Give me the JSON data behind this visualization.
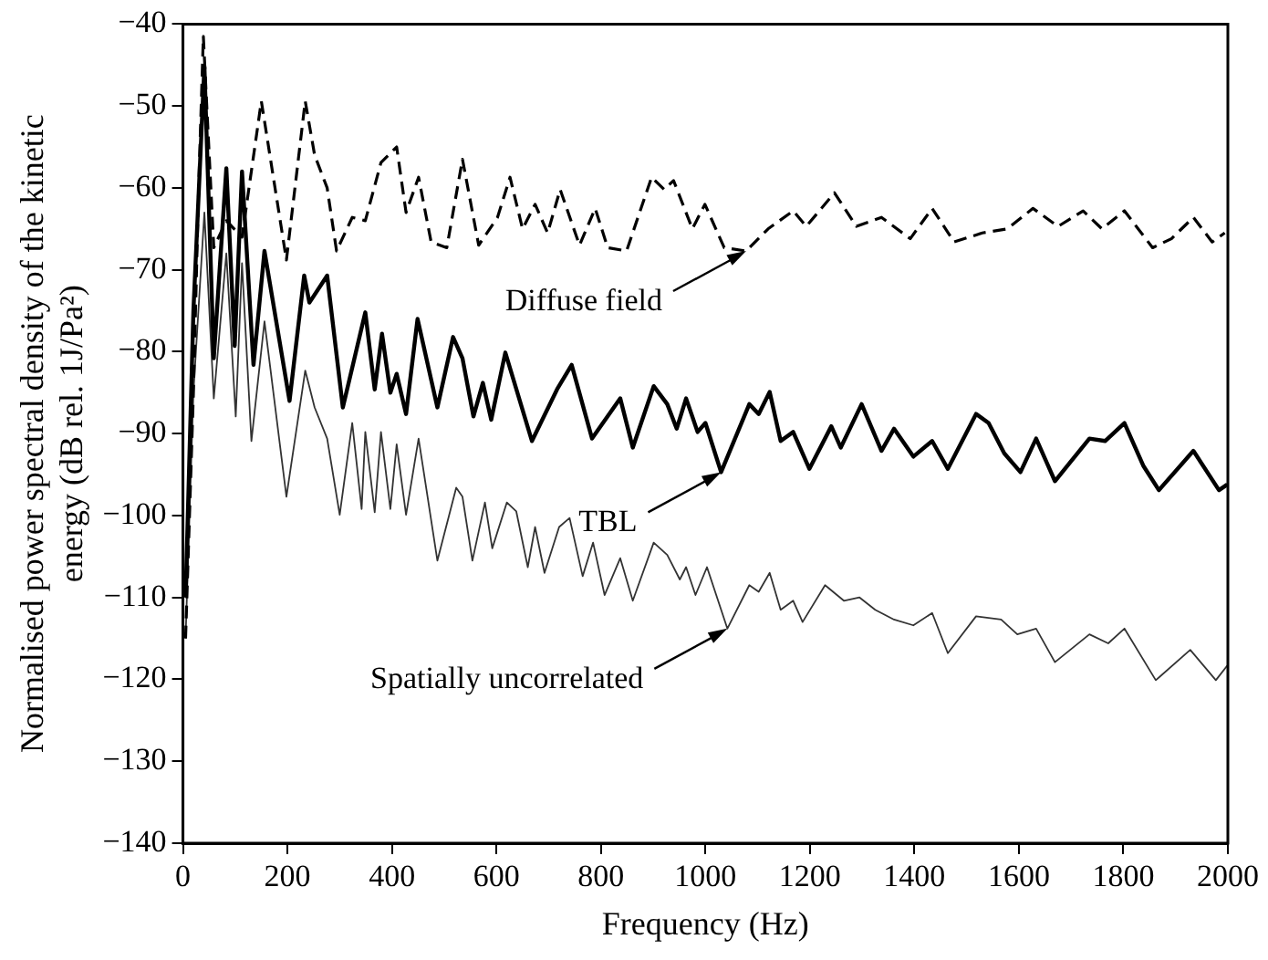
{
  "chart_data": {
    "type": "line",
    "xlabel": "Frequency (Hz)",
    "ylabel": "Normalised power spectral density of the kinetic energy (dB rel. 1J/Pa²)",
    "xlim": [
      0,
      2000
    ],
    "xticks": [
      0,
      200,
      400,
      600,
      800,
      1000,
      1200,
      1400,
      1600,
      1800,
      2000
    ],
    "ylim": [
      -140,
      -40
    ],
    "yticks": [
      -140,
      -130,
      -120,
      -110,
      -100,
      -90,
      -80,
      -70,
      -60,
      -50,
      -40
    ],
    "grid": false,
    "legend": false,
    "marker": "none",
    "series": [
      {
        "color": "#000000",
        "line_style": "dashed",
        "x": [
          5,
          20,
          30,
          39,
          59,
          83,
          113,
          150,
          198,
          234,
          252,
          276,
          294,
          324,
          349,
          379,
          409,
          427,
          451,
          475,
          505,
          535,
          566,
          602,
          626,
          650,
          674,
          698,
          722,
          759,
          789,
          813,
          849,
          897,
          921,
          939,
          975,
          999,
          1036,
          1078,
          1120,
          1168,
          1193,
          1247,
          1289,
          1337,
          1392,
          1434,
          1476,
          1530,
          1578,
          1627,
          1675,
          1723,
          1759,
          1802,
          1856,
          1892,
          1934,
          1970,
          1994
        ],
        "values": [
          -115,
          -85,
          -60,
          -41.5,
          -67.3,
          -64,
          -66,
          -49.4,
          -68.8,
          -49.4,
          -56,
          -60,
          -67.7,
          -63.6,
          -64,
          -56.9,
          -55,
          -63,
          -58.7,
          -66.6,
          -67.3,
          -56.5,
          -67,
          -63.6,
          -58.7,
          -65,
          -62,
          -65.5,
          -60.2,
          -67,
          -62.5,
          -67.3,
          -67.7,
          -58.7,
          -60.2,
          -59.1,
          -65,
          -62,
          -67.3,
          -67.7,
          -65,
          -62.8,
          -64.7,
          -60.6,
          -64.7,
          -63.6,
          -66.2,
          -62.5,
          -66.6,
          -65.5,
          -65,
          -62.5,
          -64.7,
          -62.8,
          -65,
          -62.8,
          -67.3,
          -66.2,
          -63.6,
          -66.6,
          -65.5
        ]
      },
      {
        "color": "#000000",
        "line_style": "solid",
        "x": [
          5,
          20,
          41,
          59,
          83,
          99,
          113,
          135,
          156,
          204,
          232,
          242,
          276,
          306,
          349,
          367,
          381,
          397,
          409,
          427,
          449,
          487,
          517,
          535,
          556,
          574,
          590,
          617,
          668,
          716,
          744,
          783,
          837,
          861,
          901,
          927,
          945,
          963,
          985,
          1000,
          1030,
          1084,
          1102,
          1123,
          1144,
          1168,
          1199,
          1241,
          1259,
          1299,
          1337,
          1361,
          1398,
          1434,
          1464,
          1518,
          1542,
          1572,
          1603,
          1633,
          1669,
          1735,
          1765,
          1802,
          1838,
          1868,
          1934,
          1983,
          1999
        ],
        "values": [
          -110,
          -75,
          -45.2,
          -80.8,
          -57.6,
          -79.3,
          -58,
          -81.6,
          -67.7,
          -86,
          -70.7,
          -74,
          -70.7,
          -86.8,
          -75.2,
          -84.6,
          -77.8,
          -85,
          -82.7,
          -87.6,
          -76,
          -86.8,
          -78.2,
          -80.8,
          -87.9,
          -83.8,
          -88.3,
          -80.1,
          -90.9,
          -84.6,
          -81.6,
          -90.6,
          -85.7,
          -91.7,
          -84.2,
          -86.4,
          -89.4,
          -85.7,
          -89.8,
          -88.7,
          -94.7,
          -86.4,
          -87.6,
          -84.9,
          -90.9,
          -89.8,
          -94.3,
          -89.1,
          -91.7,
          -86.4,
          -92.1,
          -89.4,
          -92.8,
          -90.9,
          -94.3,
          -87.6,
          -88.7,
          -92.4,
          -94.7,
          -90.6,
          -95.8,
          -90.6,
          -90.9,
          -88.7,
          -93.9,
          -96.9,
          -92.1,
          -96.9,
          -96.2
        ]
      },
      {
        "color": "#333333",
        "line_style": "solid",
        "x": [
          5,
          20,
          41,
          59,
          83,
          101,
          113,
          131,
          156,
          198,
          234,
          252,
          276,
          300,
          324,
          342,
          349,
          367,
          379,
          397,
          409,
          427,
          451,
          487,
          523,
          535,
          554,
          578,
          592,
          620,
          638,
          660,
          674,
          692,
          720,
          740,
          765,
          785,
          807,
          837,
          861,
          901,
          927,
          951,
          963,
          981,
          1003,
          1042,
          1084,
          1102,
          1123,
          1144,
          1168,
          1186,
          1229,
          1265,
          1295,
          1325,
          1361,
          1398,
          1434,
          1464,
          1518,
          1566,
          1597,
          1633,
          1669,
          1735,
          1771,
          1802,
          1862,
          1928,
          1977,
          1999
        ],
        "values": [
          -115,
          -85,
          -63,
          -85.7,
          -68,
          -87.9,
          -69.2,
          -90.9,
          -76.3,
          -97.7,
          -82.3,
          -86.8,
          -90.6,
          -99.9,
          -88.7,
          -99.2,
          -89.8,
          -99.6,
          -89.8,
          -99.2,
          -91.3,
          -99.9,
          -90.6,
          -105.5,
          -96.6,
          -97.7,
          -105.5,
          -98.4,
          -104,
          -98.4,
          -99.5,
          -106.3,
          -101.4,
          -107,
          -101.4,
          -100.3,
          -107.4,
          -103.3,
          -109.7,
          -105.2,
          -110.4,
          -103.3,
          -104.8,
          -107.8,
          -106.3,
          -109.7,
          -106.3,
          -113.8,
          -108.5,
          -109.3,
          -107,
          -111.5,
          -110.4,
          -113,
          -108.5,
          -110.4,
          -110,
          -111.5,
          -112.7,
          -113.4,
          -111.9,
          -116.8,
          -112.3,
          -112.7,
          -114.5,
          -113.8,
          -117.9,
          -114.5,
          -115.6,
          -113.8,
          -120.1,
          -116.4,
          -120.1,
          -118.3
        ]
      }
    ],
    "annotations": [
      {
        "text": "Diffuse field",
        "x": 1078,
        "y": -67.7
      },
      {
        "text": "TBL",
        "x": 1030,
        "y": -94.7
      },
      {
        "text": "Spatially uncorrelated",
        "x": 1042,
        "y": -113.8
      }
    ]
  }
}
